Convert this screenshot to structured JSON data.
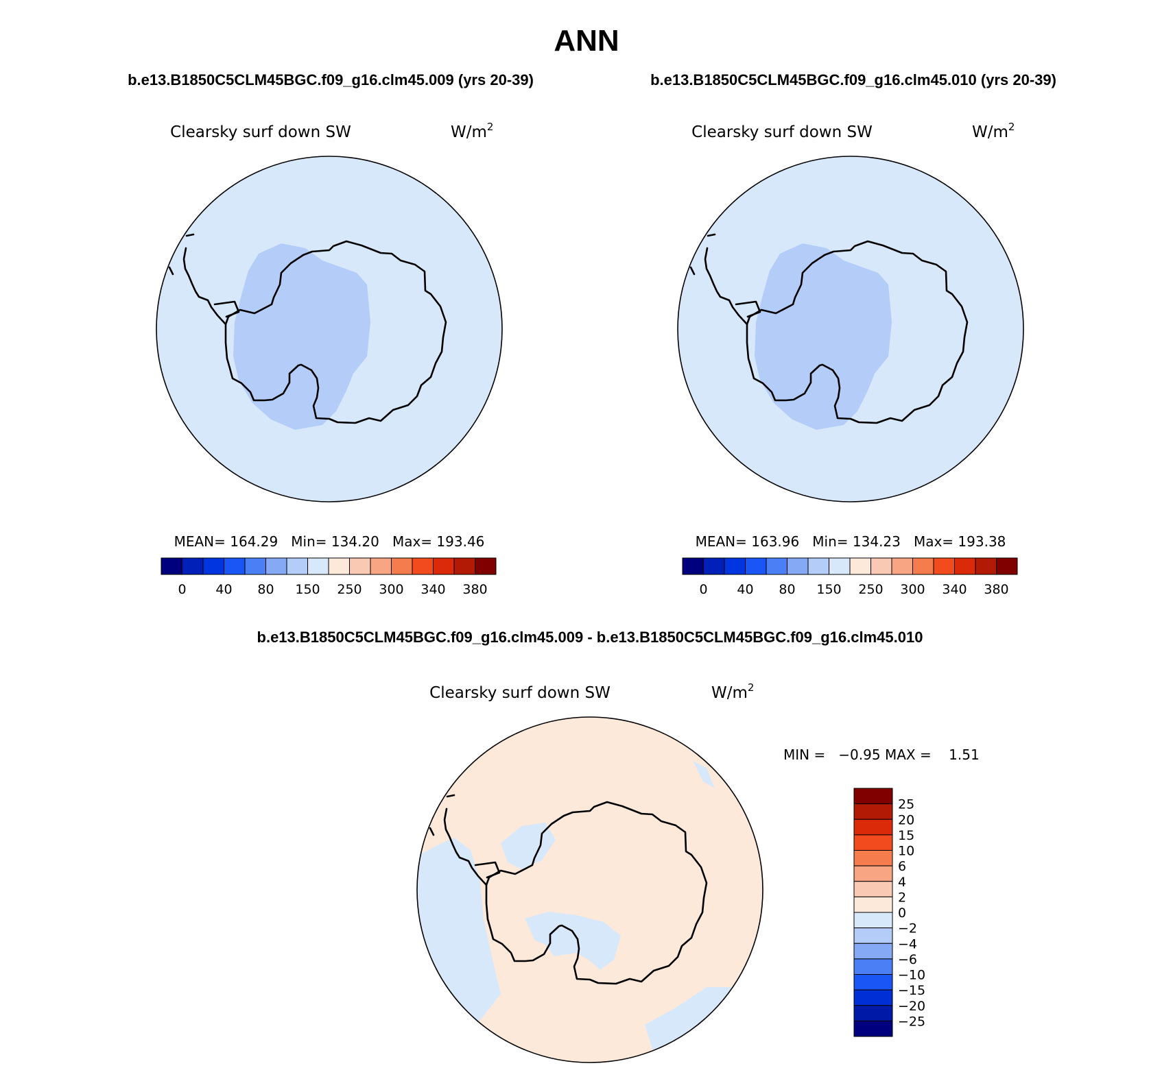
{
  "title": "ANN",
  "colors": {
    "abs_scale": [
      "#00007f",
      "#0020b8",
      "#0035e0",
      "#1a55f5",
      "#4a7ff5",
      "#86a9f5",
      "#b4ccf8",
      "#d8e8fb",
      "#fde9da",
      "#fac9b3",
      "#f8a584",
      "#f57c4c",
      "#f24c1e",
      "#db2a0a",
      "#b31a05",
      "#800000"
    ],
    "diff_scale": [
      "#00007f",
      "#001aa8",
      "#0030d5",
      "#1a55f5",
      "#4a7ff5",
      "#86a9f5",
      "#b4ccf8",
      "#d8e8fb",
      "#fde9da",
      "#fac9b3",
      "#f8a584",
      "#f57c4c",
      "#f24c1e",
      "#db2a0a",
      "#b31a05",
      "#800000"
    ]
  },
  "panels": [
    {
      "header": "b.e13.B1850C5CLM45BGC.f09_g16.clm45.009 (yrs 20-39)",
      "variable": "Clearsky surf down SW",
      "units": "W/m",
      "units_exp": "2",
      "stats": "MEAN= 164.29   Min= 134.20   Max= 193.46",
      "colorbar_labels": [
        "0",
        "40",
        "80",
        "150",
        "250",
        "300",
        "340",
        "380"
      ]
    },
    {
      "header": "b.e13.B1850C5CLM45BGC.f09_g16.clm45.010 (yrs 20-39)",
      "variable": "Clearsky surf down SW",
      "units": "W/m",
      "units_exp": "2",
      "stats": "MEAN= 163.96   Min= 134.23   Max= 193.38",
      "colorbar_labels": [
        "0",
        "40",
        "80",
        "150",
        "250",
        "300",
        "340",
        "380"
      ]
    }
  ],
  "difference": {
    "header": "b.e13.B1850C5CLM45BGC.f09_g16.clm45.009 - b.e13.B1850C5CLM45BGC.f09_g16.clm45.010",
    "variable": "Clearsky surf down SW",
    "units": "W/m",
    "units_exp": "2",
    "minmax": "MIN =   −0.95 MAX =    1.51",
    "colorbar_labels": [
      "25",
      "20",
      "15",
      "10",
      "6",
      "4",
      "2",
      "0",
      "−2",
      "−4",
      "−6",
      "−10",
      "−15",
      "−20",
      "−25"
    ]
  }
}
